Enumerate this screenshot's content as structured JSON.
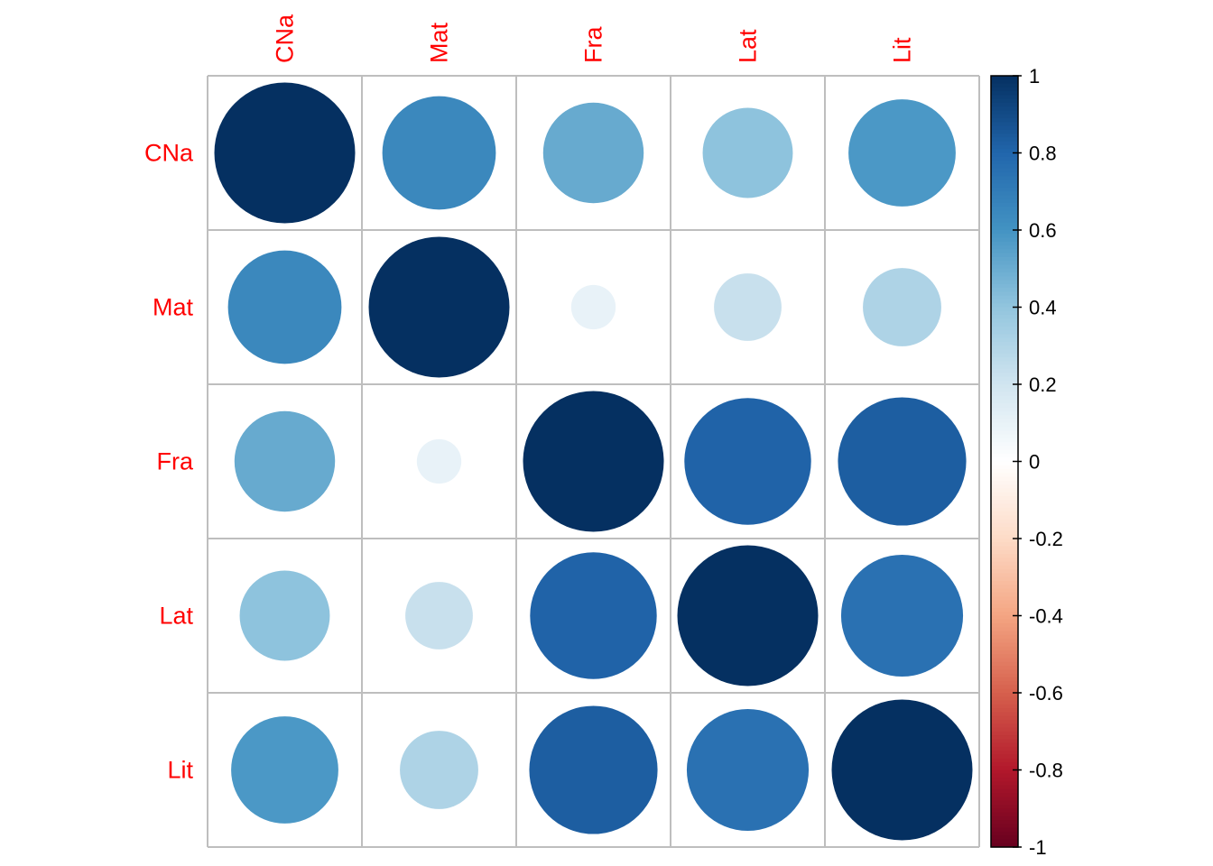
{
  "chart_data": {
    "type": "heatmap",
    "subtype": "correlation-circle",
    "labels": [
      "CNa",
      "Mat",
      "Fra",
      "Lat",
      "Lit"
    ],
    "matrix": [
      [
        1.0,
        0.65,
        0.51,
        0.41,
        0.58
      ],
      [
        0.65,
        1.0,
        0.1,
        0.23,
        0.31
      ],
      [
        0.51,
        0.1,
        1.0,
        0.81,
        0.83
      ],
      [
        0.41,
        0.23,
        0.81,
        1.0,
        0.75
      ],
      [
        0.58,
        0.31,
        0.83,
        0.75,
        1.0
      ]
    ],
    "colorbar": {
      "range": [
        -1,
        1
      ],
      "ticks": [
        "1",
        "0.8",
        "0.6",
        "0.4",
        "0.2",
        "0",
        "-0.2",
        "-0.4",
        "-0.6",
        "-0.8",
        "-1"
      ],
      "palette": [
        "#67001F",
        "#B2182B",
        "#D6604D",
        "#F4A582",
        "#FDDBC7",
        "#FFFFFF",
        "#D1E5F0",
        "#92C5DE",
        "#4393C3",
        "#2166AC",
        "#053061"
      ]
    },
    "label_color": "#FF0000",
    "grid": true
  }
}
